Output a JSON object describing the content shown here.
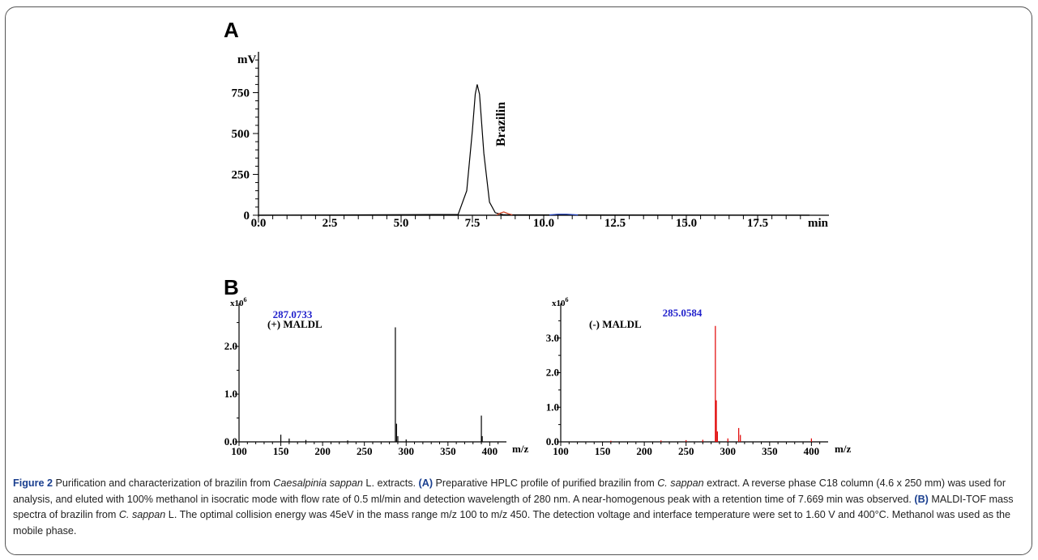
{
  "panels": {
    "a_label": "A",
    "b_label": "B"
  },
  "chart_data": [
    {
      "type": "line",
      "panel": "A",
      "xlabel": "min",
      "ylabel": "mV",
      "xlim": [
        0,
        20
      ],
      "ylim": [
        -20,
        1000
      ],
      "x_ticks": [
        "0.0",
        "2.5",
        "5.0",
        "7.5",
        "10.0",
        "12.5",
        "15.0",
        "17.5"
      ],
      "y_ticks": [
        "0",
        "250",
        "500",
        "750"
      ],
      "annotations": [
        {
          "text": "Brazilin",
          "x": 8.2,
          "y": 600
        }
      ],
      "series": [
        {
          "color": "#000000",
          "x": [
            0,
            7.0,
            7.3,
            7.5,
            7.6,
            7.669,
            7.75,
            7.9,
            8.1,
            8.3,
            8.6,
            20
          ],
          "y": [
            0,
            5,
            150,
            520,
            740,
            800,
            740,
            380,
            80,
            15,
            3,
            0
          ]
        },
        {
          "color": "#d04020",
          "x": [
            8.35,
            8.5,
            8.6,
            8.75,
            8.9
          ],
          "y": [
            2,
            14,
            20,
            10,
            2
          ]
        },
        {
          "color": "#2040c0",
          "x": [
            10.2,
            10.5,
            10.8,
            11.2
          ],
          "y": [
            2,
            6,
            6,
            2
          ]
        }
      ]
    },
    {
      "type": "bar",
      "panel": "B-left",
      "title": "(+) MALDL",
      "y_exponent_label": "x10",
      "y_exponent": "6",
      "xlabel": "m/z",
      "xlim": [
        100,
        420
      ],
      "ylim": [
        0,
        2.9
      ],
      "x_ticks": [
        "100",
        "150",
        "200",
        "250",
        "300",
        "350",
        "400"
      ],
      "y_ticks": [
        "0.0",
        "1.0",
        "2.0"
      ],
      "peak_label": "287.0733",
      "color": "#000000",
      "peaks": [
        [
          150,
          0.15
        ],
        [
          160,
          0.07
        ],
        [
          180,
          0.04
        ],
        [
          230,
          0.03
        ],
        [
          287.0733,
          2.4
        ],
        [
          288.5,
          0.38
        ],
        [
          290,
          0.12
        ],
        [
          300,
          0.05
        ],
        [
          390,
          0.55
        ],
        [
          391,
          0.12
        ]
      ]
    },
    {
      "type": "bar",
      "panel": "B-right",
      "title": "(-) MALDL",
      "y_exponent_label": "x10",
      "y_exponent": "6",
      "xlabel": "m/z",
      "xlim": [
        100,
        420
      ],
      "ylim": [
        0,
        4.0
      ],
      "x_ticks": [
        "100",
        "150",
        "200",
        "250",
        "300",
        "350",
        "400"
      ],
      "y_ticks": [
        "0.0",
        "1.0",
        "2.0",
        "3.0"
      ],
      "peak_label": "285.0584",
      "color": "#e00000",
      "peaks": [
        [
          160,
          0.03
        ],
        [
          220,
          0.04
        ],
        [
          250,
          0.05
        ],
        [
          270,
          0.06
        ],
        [
          285.0584,
          3.35
        ],
        [
          286.2,
          1.2
        ],
        [
          287.5,
          0.3
        ],
        [
          300,
          0.1
        ],
        [
          313,
          0.4
        ],
        [
          315,
          0.2
        ],
        [
          400,
          0.1
        ]
      ]
    }
  ],
  "caption": {
    "figure_label": "Figure 2",
    "t1": " Purification and characterization of brazilin from ",
    "species1": "Caesalpinia sappan",
    "t2": " L. extracts. ",
    "tag_a": "(A)",
    "t3": " Preparative HPLC profile of purified brazilin from ",
    "species2": "C. sappan",
    "t4": " extract. A reverse phase C18 column (4.6 x 250 mm) was used for analysis, and eluted with 100% methanol in isocratic mode with flow rate of 0.5 ml/min and detection wavelength of 280 nm. A near-homogenous peak with a retention time of 7.669 min was observed. ",
    "tag_b": "(B)",
    "t5": " MALDI-TOF mass spectra of brazilin from ",
    "species3": "C. sappan",
    "t6": " L. The optimal collision energy was 45eV in the mass range m/z 100 to m/z 450. The detection voltage and interface temperature were set to 1.60 V and 400°C. Methanol was used as the mobile phase."
  }
}
